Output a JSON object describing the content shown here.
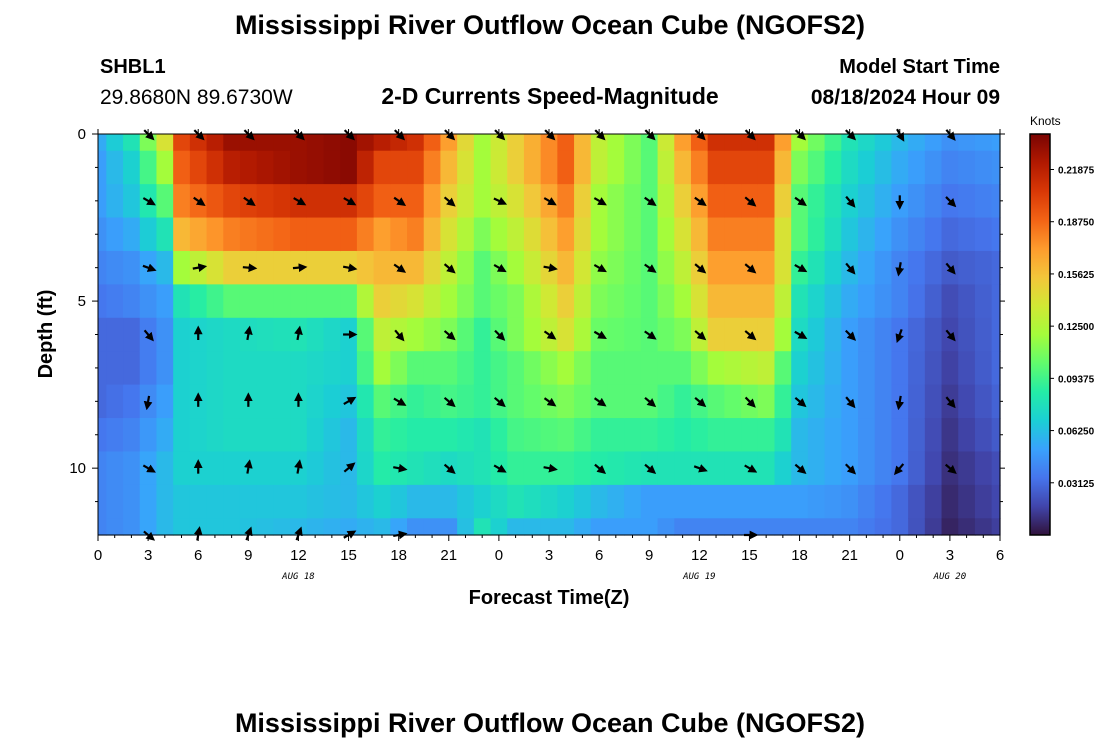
{
  "header": {
    "title": "Mississippi River Outflow Ocean Cube (NGOFS2)",
    "station": "SHBL1",
    "coords": "29.8680N  89.6730W",
    "plot_title": "2-D Currents Speed-Magnitude",
    "model_start_label": "Model Start Time",
    "model_start_time": "08/18/2024 Hour 09"
  },
  "footer": {
    "title": "Mississippi River Outflow Ocean Cube (NGOFS2)"
  },
  "chart_data": {
    "type": "heatmap",
    "title": "2-D Currents Speed-Magnitude",
    "xlabel": "Forecast Time(Z)",
    "ylabel": "Depth (ft)",
    "x_ticks": [
      "0",
      "3",
      "6",
      "9",
      "12",
      "15",
      "18",
      "21",
      "0",
      "3",
      "6",
      "9",
      "12",
      "15",
      "18",
      "21",
      "0",
      "3",
      "6"
    ],
    "x_tick_hours": [
      0,
      3,
      6,
      9,
      12,
      15,
      18,
      21,
      24,
      27,
      30,
      33,
      36,
      39,
      42,
      45,
      48,
      51,
      54
    ],
    "date_labels": [
      {
        "text": "AUG 18",
        "hour": 12
      },
      {
        "text": "AUG 19",
        "hour": 36
      },
      {
        "text": "AUG 20",
        "hour": 51
      }
    ],
    "xlim": [
      0,
      54
    ],
    "y_ticks": [
      "0",
      "5",
      "10"
    ],
    "y_tick_values": [
      0,
      5,
      10
    ],
    "ylim": [
      0,
      12
    ],
    "y_inverted": true,
    "colorbar": {
      "label": "Knots",
      "min": 0,
      "max": 0.24,
      "ticks": [
        "0.03125",
        "0.06250",
        "0.09375",
        "0.12500",
        "0.15625",
        "0.18750",
        "0.21875"
      ],
      "tick_values": [
        0.03125,
        0.0625,
        0.09375,
        0.125,
        0.15625,
        0.1875,
        0.21875
      ],
      "colormap": [
        "#30123b",
        "#4145ab",
        "#4675ed",
        "#39a2fc",
        "#1bcfd4",
        "#24eca6",
        "#61fc6c",
        "#a4fc3b",
        "#d1e834",
        "#f3c63a",
        "#fe9b2d",
        "#f36315",
        "#d93806",
        "#b11901",
        "#7a0402"
      ]
    },
    "depths": [
      0,
      1,
      2,
      3,
      4,
      5,
      6,
      7,
      8,
      9,
      10,
      11,
      12
    ],
    "hours": [
      0,
      1,
      2,
      3,
      4,
      5,
      6,
      7,
      8,
      9,
      10,
      11,
      12,
      13,
      14,
      15,
      16,
      17,
      18,
      19,
      20,
      21,
      22,
      23,
      24,
      25,
      26,
      27,
      28,
      29,
      30,
      31,
      32,
      33,
      34,
      35,
      36,
      37,
      38,
      39,
      40,
      41,
      42,
      43,
      44,
      45,
      46,
      47,
      48,
      49,
      50,
      51,
      52,
      53,
      54
    ],
    "speed_knots_keyframes": [
      {
        "hour": 0,
        "profile": [
          0.055,
          0.05,
          0.05,
          0.045,
          0.04,
          0.035,
          0.03,
          0.03,
          0.03,
          0.035,
          0.04,
          0.04,
          0.04
        ]
      },
      {
        "hour": 2,
        "profile": [
          0.08,
          0.07,
          0.065,
          0.055,
          0.045,
          0.04,
          0.03,
          0.03,
          0.035,
          0.04,
          0.045,
          0.045,
          0.045
        ]
      },
      {
        "hour": 4,
        "profile": [
          0.14,
          0.12,
          0.1,
          0.08,
          0.06,
          0.05,
          0.045,
          0.045,
          0.05,
          0.055,
          0.06,
          0.06,
          0.06
        ]
      },
      {
        "hour": 5,
        "profile": [
          0.2,
          0.19,
          0.18,
          0.16,
          0.12,
          0.08,
          0.07,
          0.07,
          0.07,
          0.07,
          0.07,
          0.065,
          0.065
        ]
      },
      {
        "hour": 8,
        "profile": [
          0.23,
          0.22,
          0.2,
          0.18,
          0.15,
          0.1,
          0.075,
          0.075,
          0.075,
          0.075,
          0.07,
          0.065,
          0.065
        ]
      },
      {
        "hour": 12,
        "profile": [
          0.23,
          0.23,
          0.21,
          0.19,
          0.15,
          0.1,
          0.08,
          0.075,
          0.075,
          0.075,
          0.07,
          0.065,
          0.06
        ]
      },
      {
        "hour": 15,
        "profile": [
          0.235,
          0.235,
          0.21,
          0.19,
          0.15,
          0.1,
          0.07,
          0.07,
          0.065,
          0.06,
          0.06,
          0.06,
          0.055
        ]
      },
      {
        "hour": 17,
        "profile": [
          0.22,
          0.2,
          0.19,
          0.17,
          0.16,
          0.15,
          0.13,
          0.12,
          0.1,
          0.09,
          0.085,
          0.07,
          0.06
        ]
      },
      {
        "hour": 19,
        "profile": [
          0.21,
          0.2,
          0.19,
          0.18,
          0.16,
          0.14,
          0.12,
          0.1,
          0.09,
          0.085,
          0.08,
          0.06,
          0.045
        ]
      },
      {
        "hour": 21,
        "profile": [
          0.17,
          0.16,
          0.15,
          0.14,
          0.13,
          0.12,
          0.11,
          0.1,
          0.095,
          0.085,
          0.075,
          0.06,
          0.045
        ]
      },
      {
        "hour": 23,
        "profile": [
          0.12,
          0.12,
          0.12,
          0.11,
          0.1,
          0.1,
          0.09,
          0.09,
          0.09,
          0.08,
          0.08,
          0.07,
          0.08
        ]
      },
      {
        "hour": 25,
        "profile": [
          0.15,
          0.15,
          0.14,
          0.13,
          0.12,
          0.11,
          0.11,
          0.1,
          0.1,
          0.095,
          0.09,
          0.08,
          0.06
        ]
      },
      {
        "hour": 28,
        "profile": [
          0.19,
          0.19,
          0.18,
          0.17,
          0.16,
          0.15,
          0.14,
          0.12,
          0.11,
          0.1,
          0.09,
          0.07,
          0.06
        ]
      },
      {
        "hour": 30,
        "profile": [
          0.13,
          0.13,
          0.12,
          0.12,
          0.115,
          0.11,
          0.105,
          0.1,
          0.1,
          0.09,
          0.085,
          0.06,
          0.05
        ]
      },
      {
        "hour": 33,
        "profile": [
          0.1,
          0.1,
          0.1,
          0.1,
          0.1,
          0.1,
          0.1,
          0.1,
          0.1,
          0.09,
          0.08,
          0.05,
          0.05
        ]
      },
      {
        "hour": 35,
        "profile": [
          0.17,
          0.16,
          0.15,
          0.14,
          0.13,
          0.12,
          0.11,
          0.1,
          0.09,
          0.085,
          0.08,
          0.05,
          0.04
        ]
      },
      {
        "hour": 37,
        "profile": [
          0.21,
          0.2,
          0.19,
          0.18,
          0.17,
          0.16,
          0.15,
          0.12,
          0.1,
          0.09,
          0.08,
          0.05,
          0.04
        ]
      },
      {
        "hour": 40,
        "profile": [
          0.21,
          0.2,
          0.19,
          0.18,
          0.17,
          0.16,
          0.15,
          0.13,
          0.11,
          0.09,
          0.08,
          0.05,
          0.04
        ]
      },
      {
        "hour": 41,
        "profile": [
          0.17,
          0.16,
          0.15,
          0.14,
          0.14,
          0.13,
          0.12,
          0.1,
          0.09,
          0.08,
          0.07,
          0.05,
          0.04
        ]
      },
      {
        "hour": 42,
        "profile": [
          0.12,
          0.11,
          0.1,
          0.1,
          0.09,
          0.08,
          0.075,
          0.07,
          0.065,
          0.06,
          0.06,
          0.05,
          0.04
        ]
      },
      {
        "hour": 45,
        "profile": [
          0.08,
          0.075,
          0.07,
          0.065,
          0.06,
          0.055,
          0.05,
          0.05,
          0.05,
          0.05,
          0.05,
          0.045,
          0.04
        ]
      },
      {
        "hour": 48,
        "profile": [
          0.06,
          0.055,
          0.05,
          0.045,
          0.04,
          0.04,
          0.035,
          0.035,
          0.035,
          0.035,
          0.035,
          0.03,
          0.03
        ]
      },
      {
        "hour": 51,
        "profile": [
          0.045,
          0.04,
          0.035,
          0.03,
          0.025,
          0.02,
          0.018,
          0.016,
          0.014,
          0.012,
          0.01,
          0.008,
          0.006
        ]
      },
      {
        "hour": 54,
        "profile": [
          0.05,
          0.045,
          0.04,
          0.035,
          0.03,
          0.03,
          0.03,
          0.03,
          0.028,
          0.025,
          0.02,
          0.018,
          0.015
        ]
      }
    ],
    "vector_depths": [
      0,
      2,
      4,
      6,
      8,
      10,
      12
    ],
    "vector_hours": [
      3,
      6,
      9,
      12,
      15,
      18,
      21,
      24,
      27,
      30,
      33,
      36,
      39,
      42,
      45,
      48,
      51
    ],
    "vector_directions_deg": [
      [
        135,
        135,
        135,
        135,
        135,
        135,
        135,
        135,
        135,
        135,
        135,
        135,
        135,
        135,
        135,
        150,
        140
      ],
      [
        120,
        125,
        125,
        120,
        120,
        125,
        130,
        115,
        120,
        120,
        125,
        125,
        130,
        125,
        140,
        180,
        135
      ],
      [
        110,
        80,
        95,
        85,
        100,
        125,
        130,
        120,
        100,
        120,
        125,
        130,
        130,
        120,
        140,
        190,
        140
      ],
      [
        140,
        0,
        10,
        10,
        90,
        140,
        130,
        135,
        125,
        120,
        125,
        130,
        130,
        120,
        135,
        200,
        140
      ],
      [
        190,
        0,
        0,
        0,
        60,
        120,
        130,
        130,
        125,
        125,
        130,
        130,
        135,
        130,
        140,
        190,
        140
      ],
      [
        120,
        0,
        10,
        10,
        50,
        100,
        130,
        120,
        100,
        130,
        130,
        110,
        120,
        130,
        135,
        220,
        130
      ],
      [
        130,
        10,
        20,
        20,
        60,
        80,
        null,
        null,
        null,
        null,
        null,
        null,
        90,
        null,
        null,
        null,
        null
      ]
    ]
  }
}
